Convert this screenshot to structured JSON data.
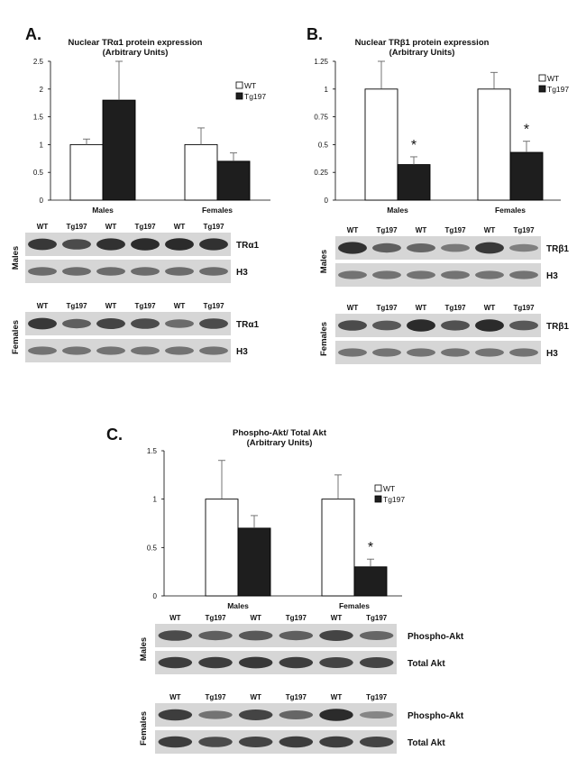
{
  "colors": {
    "wt": "#ffffff",
    "tg": "#1e1e1e",
    "axis": "#000000",
    "blot_bg": "#d6d6d6",
    "band": "#1a1a1a"
  },
  "chart_data": [
    {
      "type": "bar",
      "panel": "A.",
      "title": "Nuclear TRα1 protein expression",
      "subtitle": "(Arbitrary Units)",
      "categories": [
        "Males",
        "Females"
      ],
      "series": [
        {
          "name": "WT",
          "values": [
            1.0,
            1.0
          ],
          "errors": [
            0.1,
            0.3
          ]
        },
        {
          "name": "Tg197",
          "values": [
            1.8,
            0.7
          ],
          "errors": [
            0.7,
            0.15
          ]
        }
      ],
      "ylim": [
        0,
        2.5
      ],
      "yticks": [
        "0",
        "0.5",
        "1",
        "1.5",
        "2",
        "2.5"
      ],
      "ytick_values": [
        0,
        0.5,
        1,
        1.5,
        2,
        2.5
      ],
      "significance": [],
      "legend": "top-right"
    },
    {
      "type": "bar",
      "panel": "B.",
      "title": "Nuclear TRβ1 protein expression",
      "subtitle": "(Arbitrary Units)",
      "categories": [
        "Males",
        "Females"
      ],
      "series": [
        {
          "name": "WT",
          "values": [
            1.0,
            1.0
          ],
          "errors": [
            0.25,
            0.15
          ]
        },
        {
          "name": "Tg197",
          "values": [
            0.32,
            0.43
          ],
          "errors": [
            0.07,
            0.1
          ]
        }
      ],
      "ylim": [
        0,
        1.25
      ],
      "yticks": [
        "0",
        "0.25",
        "0.5",
        "0.75",
        "1",
        "1.25"
      ],
      "ytick_values": [
        0,
        0.25,
        0.5,
        0.75,
        1,
        1.25
      ],
      "significance": [
        "*",
        "*"
      ],
      "legend": "top-right"
    },
    {
      "type": "bar",
      "panel": "C.",
      "title": "Phospho-Akt/ Total Akt",
      "subtitle": "(Arbitrary Units)",
      "categories": [
        "Males",
        "Females"
      ],
      "series": [
        {
          "name": "WT",
          "values": [
            1.0,
            1.0
          ],
          "errors": [
            0.4,
            0.25
          ]
        },
        {
          "name": "Tg197",
          "values": [
            0.7,
            0.3
          ],
          "errors": [
            0.13,
            0.08
          ]
        }
      ],
      "ylim": [
        0,
        1.5
      ],
      "yticks": [
        "0",
        "0.5",
        "1",
        "1.5"
      ],
      "ytick_values": [
        0,
        0.5,
        1,
        1.5
      ],
      "significance": [
        "",
        "*"
      ],
      "legend": "top-right"
    }
  ],
  "blots": [
    {
      "group": "Males",
      "lanes": [
        "WT",
        "Tg197",
        "WT",
        "Tg197",
        "WT",
        "Tg197"
      ],
      "rows": [
        {
          "label": "TRα1",
          "intensity": [
            0.85,
            0.7,
            0.9,
            0.95,
            0.95,
            0.9
          ]
        },
        {
          "label": "H3",
          "intensity": [
            0.45,
            0.45,
            0.45,
            0.45,
            0.45,
            0.45
          ]
        }
      ]
    },
    {
      "group": "Females",
      "lanes": [
        "WT",
        "Tg197",
        "WT",
        "Tg197",
        "WT",
        "Tg197"
      ],
      "rows": [
        {
          "label": "TRα1",
          "intensity": [
            0.85,
            0.55,
            0.75,
            0.7,
            0.45,
            0.7
          ]
        },
        {
          "label": "H3",
          "intensity": [
            0.4,
            0.4,
            0.4,
            0.4,
            0.4,
            0.4
          ]
        }
      ]
    },
    {
      "group": "Males",
      "lanes": [
        "WT",
        "Tg197",
        "WT",
        "Tg197",
        "WT",
        "Tg197"
      ],
      "rows": [
        {
          "label": "TRβ1",
          "intensity": [
            0.9,
            0.55,
            0.5,
            0.35,
            0.85,
            0.3
          ]
        },
        {
          "label": "H3",
          "intensity": [
            0.4,
            0.4,
            0.4,
            0.4,
            0.4,
            0.4
          ]
        }
      ]
    },
    {
      "group": "Females",
      "lanes": [
        "WT",
        "Tg197",
        "WT",
        "Tg197",
        "WT",
        "Tg197"
      ],
      "rows": [
        {
          "label": "TRβ1",
          "intensity": [
            0.7,
            0.6,
            0.95,
            0.65,
            0.95,
            0.6
          ]
        },
        {
          "label": "H3",
          "intensity": [
            0.4,
            0.4,
            0.4,
            0.4,
            0.4,
            0.4
          ]
        }
      ]
    },
    {
      "group": "Males",
      "lanes": [
        "WT",
        "Tg197",
        "WT",
        "Tg197",
        "WT",
        "Tg197"
      ],
      "rows": [
        {
          "label": "Phospho-Akt",
          "intensity": [
            0.7,
            0.55,
            0.6,
            0.55,
            0.75,
            0.5
          ]
        },
        {
          "label": "Total Akt",
          "intensity": [
            0.8,
            0.8,
            0.85,
            0.8,
            0.75,
            0.75
          ]
        }
      ]
    },
    {
      "group": "Females",
      "lanes": [
        "WT",
        "Tg197",
        "WT",
        "Tg197",
        "WT",
        "Tg197"
      ],
      "rows": [
        {
          "label": "Phospho-Akt",
          "intensity": [
            0.8,
            0.4,
            0.75,
            0.5,
            0.95,
            0.25
          ]
        },
        {
          "label": "Total Akt",
          "intensity": [
            0.8,
            0.7,
            0.75,
            0.8,
            0.8,
            0.75
          ]
        }
      ]
    }
  ]
}
